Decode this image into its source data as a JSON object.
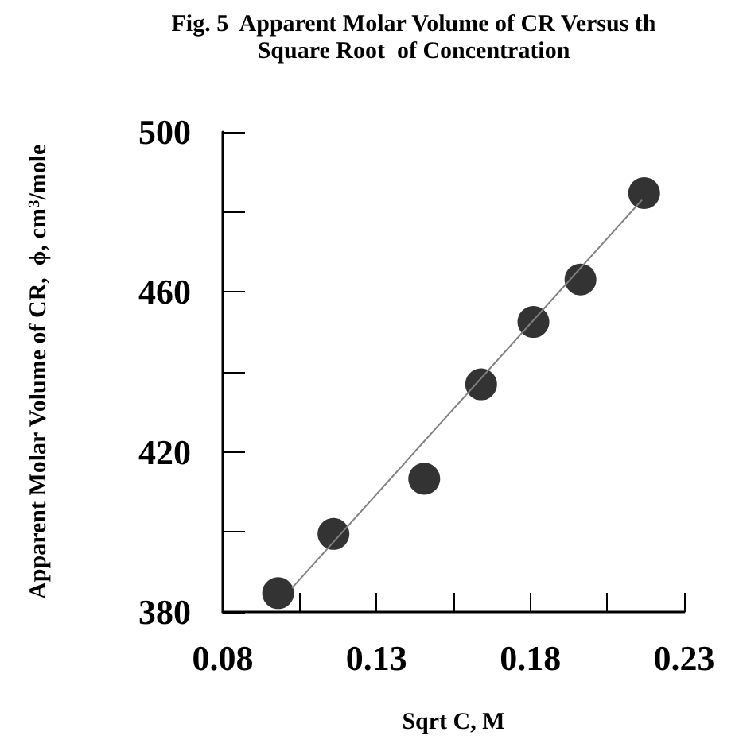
{
  "chart_data": {
    "type": "scatter",
    "title": "Fig. 5  Apparent Molar Volume of CR Versus th\nSquare Root  of Concentration",
    "xlabel": "Sqrt C, M",
    "ylabel": "Apparent Molar Volume of CR,  ϕ, cm$^{3}$/mole",
    "series": [
      {
        "color": "#000000",
        "marker": "circle",
        "x": [
          0.098,
          0.116,
          0.1455,
          0.164,
          0.181,
          0.1963,
          0.217
        ],
        "values": [
          384.7,
          399.5,
          413.3,
          436.9,
          452.5,
          463.1,
          484.7
        ]
      },
      {
        "type": "line",
        "color": "#808080",
        "x": [
          0.1025,
          0.2163
        ],
        "values": [
          386,
          483
        ]
      }
    ],
    "xlim": [
      0.08,
      0.23
    ],
    "xticks": [
      0.08,
      {
        "value": 0.105,
        "label": null
      },
      0.13,
      {
        "value": 0.155,
        "label": null
      },
      0.18,
      {
        "value": 0.205,
        "label": null
      },
      0.23
    ],
    "ylim": [
      380,
      500
    ],
    "yticks": [
      380,
      {
        "value": 400,
        "label": null
      },
      420,
      {
        "value": 440,
        "label": null
      },
      460,
      {
        "value": 480,
        "label": null
      },
      500
    ],
    "grid": false
  }
}
